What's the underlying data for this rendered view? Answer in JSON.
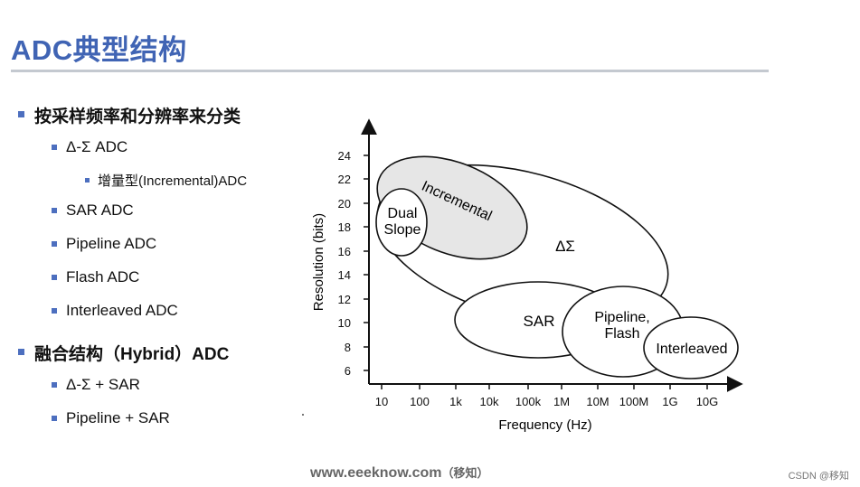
{
  "title": "ADC典型结构",
  "bullets": {
    "b1": "按采样频率和分辨率来分类",
    "b1_1": "Δ-Σ ADC",
    "b1_1_1": "增量型(Incremental)ADC",
    "b1_2": "SAR ADC",
    "b1_3": "Pipeline ADC",
    "b1_4": "Flash ADC",
    "b1_5": "Interleaved ADC",
    "b2": "融合结构（Hybrid）ADC",
    "b2_1": "Δ-Σ + SAR",
    "b2_2": "Pipeline + SAR"
  },
  "diagram": {
    "y_label": "Resolution (bits)",
    "x_label": "Frequency (Hz)",
    "y_ticks": [
      "24",
      "22",
      "20",
      "18",
      "16",
      "14",
      "12",
      "10",
      "8",
      "6"
    ],
    "x_ticks": [
      "10",
      "100",
      "1k",
      "10k",
      "100k",
      "1M",
      "10M",
      "100M",
      "1G",
      "10G"
    ],
    "regions": {
      "incremental": "Incremental",
      "dual_slope_1": "Dual",
      "dual_slope_2": "Slope",
      "delta_sigma": "ΔΣ",
      "sar": "SAR",
      "pipeline_1": "Pipeline,",
      "pipeline_2": "Flash",
      "interleaved": "Interleaved"
    },
    "colors": {
      "incremental_fill": "#e6e6e6"
    }
  },
  "footer": {
    "site": "www.eeeknow.com",
    "note": "（移知）"
  },
  "credit": "CSDN @移知"
}
